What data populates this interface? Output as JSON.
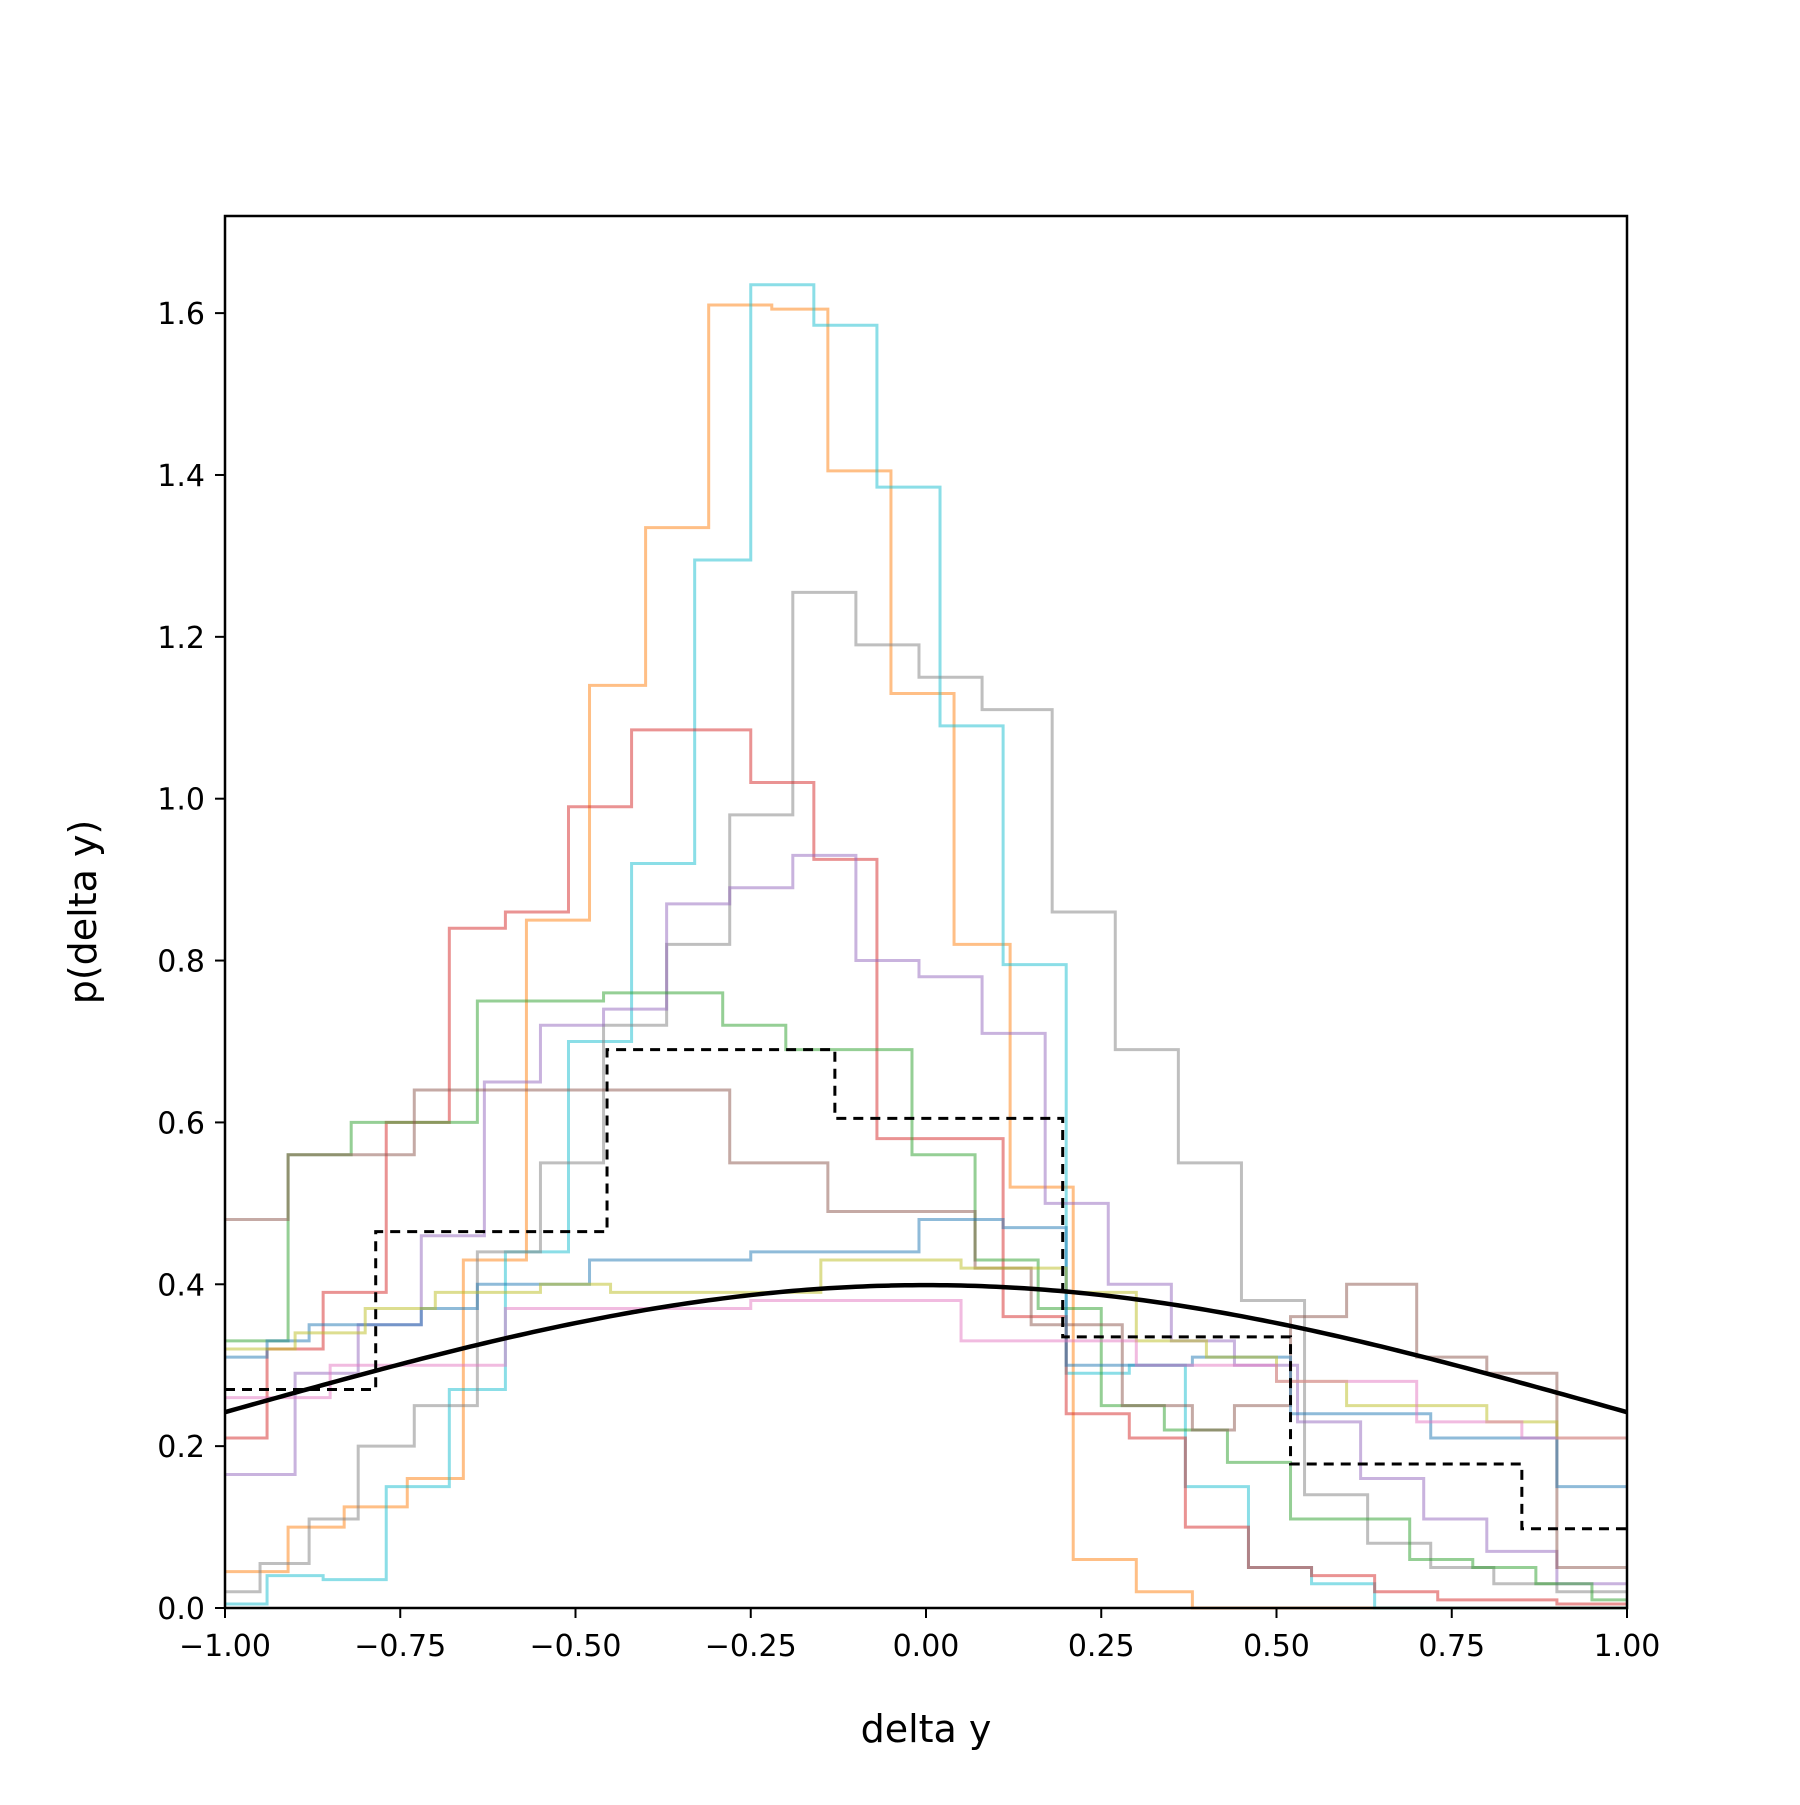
{
  "chart_data": {
    "type": "histogram-step",
    "title": "",
    "xlabel": "delta y",
    "ylabel": "p(delta y)",
    "xlim": [
      -1.0,
      1.0
    ],
    "ylim": [
      0.0,
      1.72
    ],
    "grid": false,
    "legend": "none",
    "xticks": [
      -1.0,
      -0.75,
      -0.5,
      -0.25,
      0.0,
      0.25,
      0.5,
      0.75,
      1.0
    ],
    "xtick_labels": [
      "−1.00",
      "−0.75",
      "−0.50",
      "−0.25",
      "0.00",
      "0.25",
      "0.50",
      "0.75",
      "1.00"
    ],
    "yticks": [
      0.0,
      0.2,
      0.4,
      0.6,
      0.8,
      1.0,
      1.2,
      1.4,
      1.6
    ],
    "ytick_labels": [
      "0.0",
      "0.2",
      "0.4",
      "0.6",
      "0.8",
      "1.0",
      "1.2",
      "1.4",
      "1.6"
    ],
    "series": [
      {
        "color": "#ff7f0e",
        "edges": [
          -1.0,
          -0.91,
          -0.83,
          -0.74,
          -0.66,
          -0.57,
          -0.48,
          -0.4,
          -0.31,
          -0.22,
          -0.14,
          -0.05,
          0.04,
          0.12,
          0.21,
          0.3,
          0.38,
          0.47,
          0.56,
          0.64,
          0.73,
          0.82,
          0.9,
          1.0
        ],
        "values": [
          0.045,
          0.1,
          0.125,
          0.16,
          0.43,
          0.85,
          1.14,
          1.335,
          1.61,
          1.605,
          1.405,
          1.13,
          0.82,
          0.52,
          0.06,
          0.02,
          0.0,
          0.0,
          0.0,
          0.0,
          0.0,
          0.0,
          0.0
        ]
      },
      {
        "color": "#17becf",
        "edges": [
          -1.0,
          -0.94,
          -0.86,
          -0.77,
          -0.68,
          -0.6,
          -0.51,
          -0.42,
          -0.33,
          -0.25,
          -0.16,
          -0.07,
          0.02,
          0.11,
          0.2,
          0.29,
          0.37,
          0.46,
          0.55,
          0.64,
          0.73,
          0.81,
          0.9,
          1.0
        ],
        "values": [
          0.005,
          0.04,
          0.035,
          0.15,
          0.27,
          0.44,
          0.7,
          0.92,
          1.295,
          1.635,
          1.585,
          1.385,
          1.09,
          0.795,
          0.29,
          0.3,
          0.15,
          0.05,
          0.03,
          0.0,
          0.0,
          0.0,
          0.0
        ]
      },
      {
        "color": "#7f7f7f",
        "edges": [
          -1.0,
          -0.95,
          -0.88,
          -0.81,
          -0.73,
          -0.64,
          -0.55,
          -0.46,
          -0.37,
          -0.28,
          -0.19,
          -0.1,
          -0.01,
          0.08,
          0.18,
          0.27,
          0.36,
          0.45,
          0.54,
          0.63,
          0.72,
          0.81,
          0.9,
          1.0
        ],
        "values": [
          0.02,
          0.055,
          0.11,
          0.2,
          0.25,
          0.44,
          0.55,
          0.72,
          0.82,
          0.98,
          1.255,
          1.19,
          1.15,
          1.11,
          0.86,
          0.69,
          0.55,
          0.38,
          0.14,
          0.08,
          0.05,
          0.03,
          0.02
        ]
      },
      {
        "color": "#d62728",
        "edges": [
          -1.0,
          -0.94,
          -0.86,
          -0.77,
          -0.68,
          -0.6,
          -0.51,
          -0.42,
          -0.33,
          -0.25,
          -0.16,
          -0.07,
          0.02,
          0.11,
          0.2,
          0.29,
          0.37,
          0.46,
          0.55,
          0.64,
          0.73,
          0.81,
          0.9,
          1.0
        ],
        "values": [
          0.21,
          0.32,
          0.39,
          0.6,
          0.84,
          0.86,
          0.99,
          1.085,
          1.085,
          1.02,
          0.925,
          0.58,
          0.58,
          0.36,
          0.24,
          0.21,
          0.1,
          0.05,
          0.04,
          0.02,
          0.01,
          0.01,
          0.005
        ]
      },
      {
        "color": "#9467bd",
        "edges": [
          -1.0,
          -0.9,
          -0.81,
          -0.72,
          -0.63,
          -0.55,
          -0.46,
          -0.37,
          -0.28,
          -0.19,
          -0.1,
          -0.01,
          0.08,
          0.17,
          0.26,
          0.35,
          0.44,
          0.53,
          0.62,
          0.71,
          0.8,
          0.9,
          1.0
        ],
        "values": [
          0.165,
          0.29,
          0.35,
          0.46,
          0.65,
          0.72,
          0.74,
          0.87,
          0.89,
          0.93,
          0.8,
          0.78,
          0.71,
          0.5,
          0.4,
          0.33,
          0.3,
          0.23,
          0.16,
          0.11,
          0.07,
          0.03
        ]
      },
      {
        "color": "#2ca02c",
        "edges": [
          -1.0,
          -0.91,
          -0.82,
          -0.73,
          -0.64,
          -0.55,
          -0.46,
          -0.38,
          -0.29,
          -0.2,
          -0.11,
          -0.02,
          0.07,
          0.16,
          0.25,
          0.34,
          0.43,
          0.52,
          0.61,
          0.69,
          0.78,
          0.87,
          0.95,
          1.0
        ],
        "values": [
          0.33,
          0.56,
          0.6,
          0.6,
          0.75,
          0.75,
          0.76,
          0.76,
          0.72,
          0.69,
          0.69,
          0.56,
          0.43,
          0.37,
          0.25,
          0.22,
          0.18,
          0.11,
          0.11,
          0.06,
          0.05,
          0.03,
          0.01
        ]
      },
      {
        "color": "#8c564b",
        "edges": [
          -1.0,
          -0.91,
          -0.84,
          -0.73,
          -0.64,
          -0.55,
          -0.46,
          -0.36,
          -0.28,
          -0.2,
          -0.14,
          -0.07,
          0.0,
          0.07,
          0.15,
          0.22,
          0.28,
          0.38,
          0.44,
          0.52,
          0.6,
          0.7,
          0.8,
          0.9,
          1.0
        ],
        "values": [
          0.48,
          0.56,
          0.56,
          0.64,
          0.64,
          0.64,
          0.64,
          0.64,
          0.55,
          0.55,
          0.49,
          0.49,
          0.49,
          0.42,
          0.35,
          0.35,
          0.25,
          0.22,
          0.25,
          0.36,
          0.4,
          0.31,
          0.29,
          0.05
        ]
      },
      {
        "color": "#1f77b4",
        "edges": [
          -1.0,
          -0.94,
          -0.88,
          -0.72,
          -0.64,
          -0.55,
          -0.48,
          -0.35,
          -0.25,
          -0.12,
          -0.01,
          0.11,
          0.2,
          0.28,
          0.38,
          0.45,
          0.52,
          0.6,
          0.72,
          0.82,
          0.9,
          1.0
        ],
        "values": [
          0.31,
          0.33,
          0.35,
          0.37,
          0.4,
          0.4,
          0.43,
          0.43,
          0.44,
          0.44,
          0.48,
          0.47,
          0.3,
          0.3,
          0.31,
          0.31,
          0.24,
          0.24,
          0.21,
          0.21,
          0.15
        ]
      },
      {
        "color": "#bcbd22",
        "edges": [
          -1.0,
          -0.9,
          -0.8,
          -0.7,
          -0.55,
          -0.45,
          -0.35,
          -0.25,
          -0.15,
          -0.05,
          0.05,
          0.2,
          0.3,
          0.4,
          0.5,
          0.6,
          0.7,
          0.8,
          0.9,
          1.0
        ],
        "values": [
          0.32,
          0.34,
          0.37,
          0.39,
          0.4,
          0.39,
          0.39,
          0.39,
          0.43,
          0.43,
          0.42,
          0.39,
          0.33,
          0.31,
          0.28,
          0.25,
          0.25,
          0.23,
          0.21
        ]
      },
      {
        "color": "#e377c2",
        "edges": [
          -1.0,
          -0.85,
          -0.6,
          -0.25,
          0.05,
          0.15,
          0.3,
          0.5,
          0.7,
          0.85,
          1.0
        ],
        "values": [
          0.26,
          0.3,
          0.37,
          0.38,
          0.33,
          0.33,
          0.3,
          0.28,
          0.23,
          0.21
        ]
      },
      {
        "color": "#000000",
        "dashed": true,
        "edges": [
          -1.0,
          -0.785,
          -0.455,
          -0.13,
          0.195,
          0.52,
          0.85,
          1.0
        ],
        "values": [
          0.27,
          0.465,
          0.69,
          0.605,
          0.335,
          0.178,
          0.098
        ]
      },
      {
        "color": "#000000",
        "curve": "normal-pdf",
        "mean": 0.0,
        "sigma": 1.0
      }
    ]
  }
}
